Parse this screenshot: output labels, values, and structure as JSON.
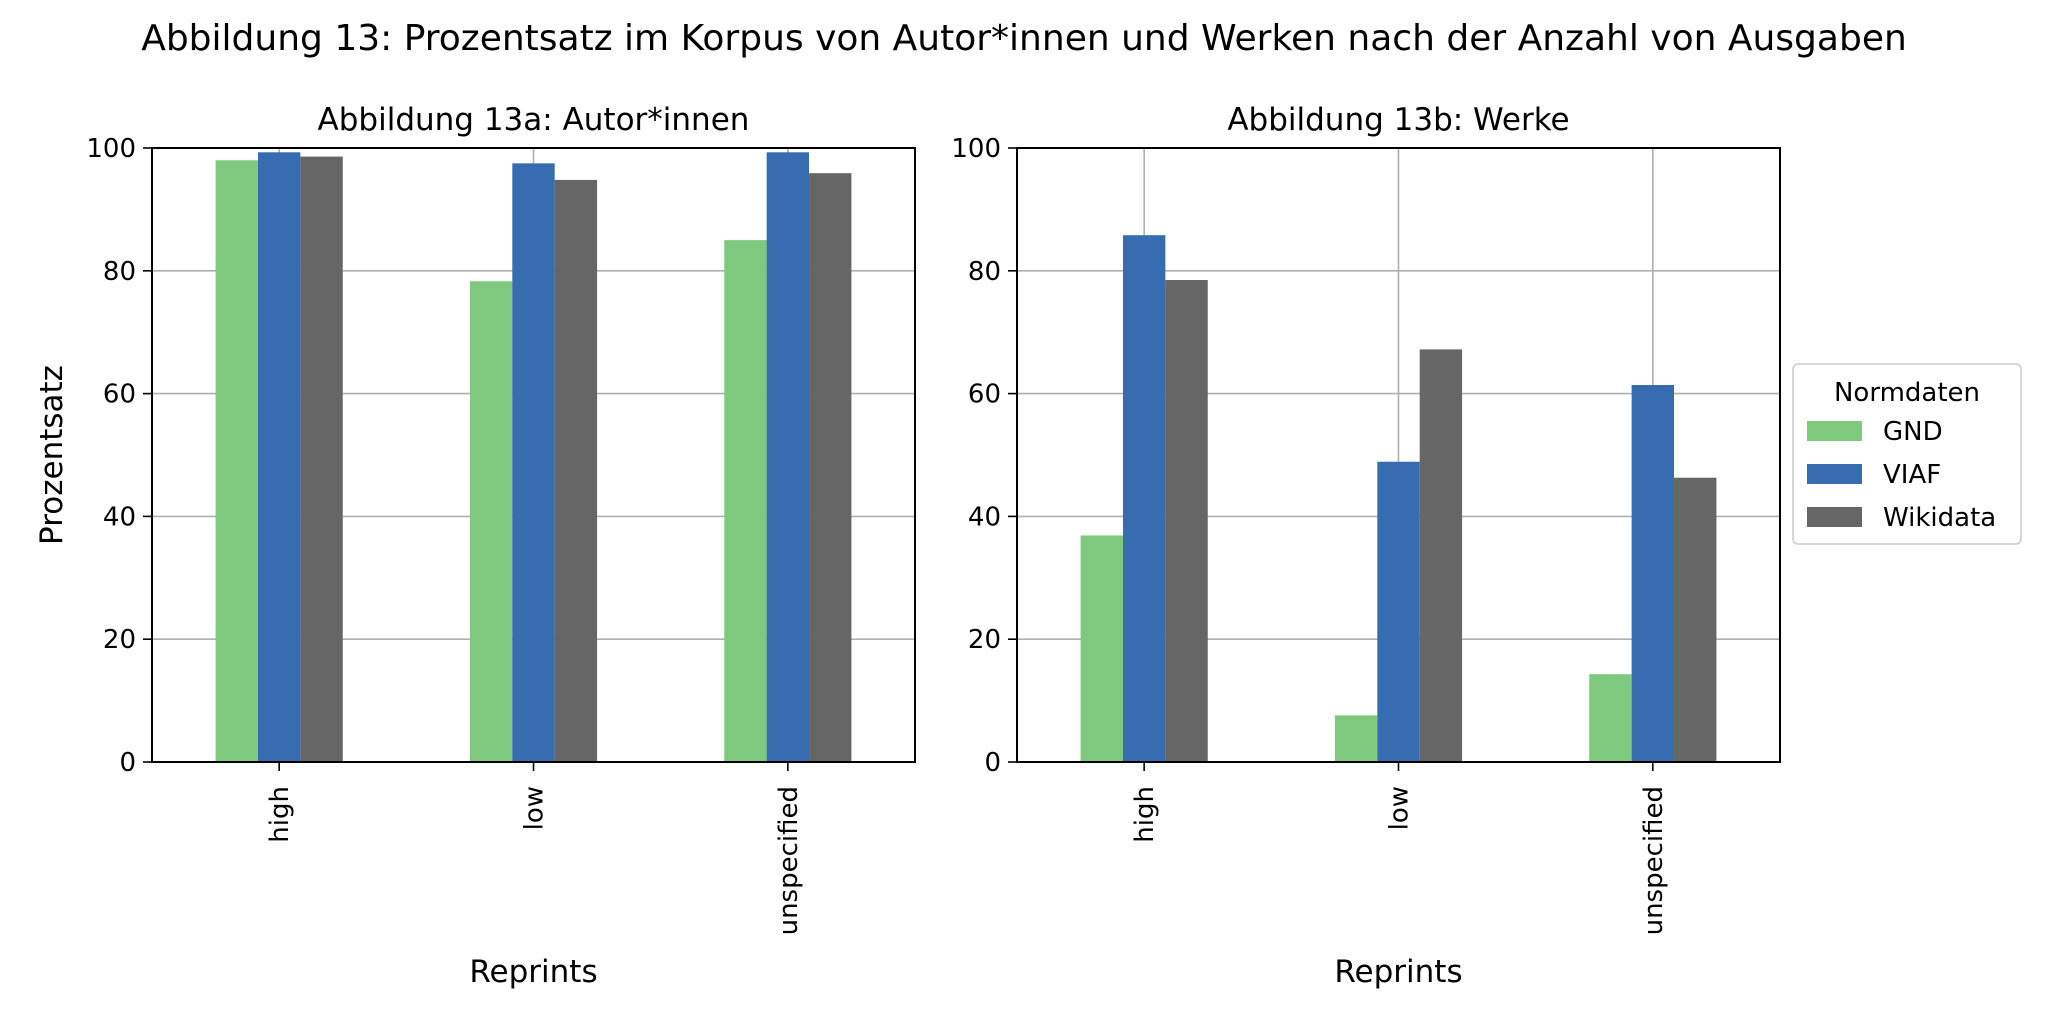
{
  "figure": {
    "title": "Abbildung 13: Prozentsatz im Korpus von Autor*innen und Werken nach der Anzahl von Ausgaben"
  },
  "legend": {
    "title": "Normdaten",
    "placement": "right, outside plot area"
  },
  "colors": {
    "GND": "#7fc97f",
    "VIAF": "#386cb0",
    "Wikidata": "#666666",
    "grid": "#b0b0b0"
  },
  "chart_data": [
    {
      "type": "bar",
      "title": "Abbildung 13a: Autor*innen",
      "xlabel": "Reprints",
      "ylabel": "Prozentsatz",
      "categories": [
        "high",
        "low",
        "unspecified"
      ],
      "ylim": [
        0,
        100
      ],
      "yticks": [
        "0",
        "20",
        "40",
        "60",
        "80",
        "100"
      ],
      "grid": true,
      "series": [
        {
          "name": "GND",
          "values": [
            98,
            78.3,
            85
          ]
        },
        {
          "name": "VIAF",
          "values": [
            99.3,
            97.5,
            99.3
          ]
        },
        {
          "name": "Wikidata",
          "values": [
            98.6,
            94.8,
            95.9
          ]
        }
      ]
    },
    {
      "type": "bar",
      "title": "Abbildung 13b: Werke",
      "xlabel": "Reprints",
      "ylabel": "",
      "categories": [
        "high",
        "low",
        "unspecified"
      ],
      "ylim": [
        0,
        100
      ],
      "yticks": [
        "0",
        "20",
        "40",
        "60",
        "80",
        "100"
      ],
      "grid": true,
      "series": [
        {
          "name": "GND",
          "values": [
            36.9,
            7.6,
            14.3
          ]
        },
        {
          "name": "VIAF",
          "values": [
            85.8,
            48.9,
            61.4
          ]
        },
        {
          "name": "Wikidata",
          "values": [
            78.5,
            67.2,
            46.3
          ]
        }
      ]
    }
  ]
}
